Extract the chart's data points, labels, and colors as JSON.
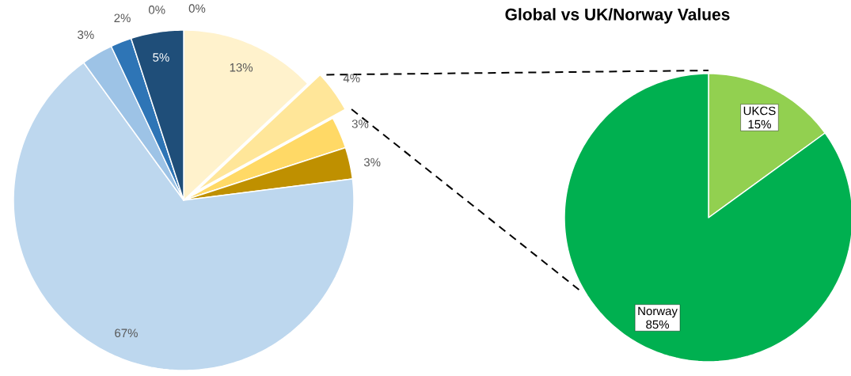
{
  "chart_data": [
    {
      "type": "pie",
      "categories": [
        null,
        null,
        null,
        null,
        null,
        null,
        null,
        null,
        null,
        null
      ],
      "values": [
        13,
        4,
        3,
        3,
        67,
        3,
        2,
        5,
        0,
        0
      ],
      "colors": [
        "#fff2cc",
        "#ffe699",
        "#ffd966",
        "#bf9000",
        "#bdd7ee",
        "#9dc3e6",
        "#2e75b6",
        "#1f4e79",
        "#1f4e79",
        "#1f4e79"
      ],
      "value_labels": [
        "13%",
        "4%",
        "3%",
        "3%",
        "67%",
        "3%",
        "2%",
        "5%",
        "0%",
        "0%"
      ]
    },
    {
      "type": "pie",
      "title": "Global vs UK/Norway Values",
      "categories": [
        "UKCS",
        "Norway"
      ],
      "values": [
        15,
        85
      ],
      "colors": [
        "#92d050",
        "#00b050"
      ],
      "value_labels": [
        "15%",
        "85%"
      ]
    }
  ]
}
